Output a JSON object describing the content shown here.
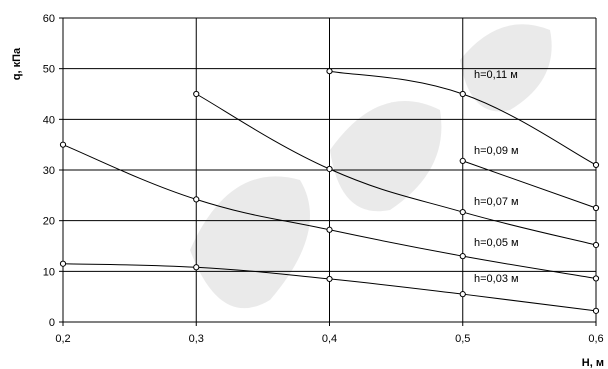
{
  "chart_data": {
    "type": "line",
    "xlabel": "H, м",
    "ylabel": "q, кПа",
    "xlim": [
      0.2,
      0.6
    ],
    "ylim": [
      0,
      60
    ],
    "xticks": [
      "0,2",
      "0,3",
      "0,4",
      "0,5",
      "0,6"
    ],
    "yticks": [
      "0",
      "10",
      "20",
      "30",
      "40",
      "50",
      "60"
    ],
    "grid": true,
    "series": [
      {
        "name": "h=0,11 м",
        "x": [
          0.4,
          0.5,
          0.6
        ],
        "y": [
          49.5,
          45,
          31
        ]
      },
      {
        "name": "h=0,09 м",
        "x": [
          0.3,
          0.4,
          0.5,
          0.6
        ],
        "y": [
          45,
          30.2,
          21.7,
          15.2
        ]
      },
      {
        "name": "h=0,07 м",
        "x": [
          0.2,
          0.3,
          0.4,
          0.5,
          0.6
        ],
        "y": [
          35,
          24.2,
          18.2,
          13,
          8.6
        ]
      },
      {
        "name": "h=0,05 м",
        "x": [
          0.2,
          0.3,
          0.4,
          0.5,
          0.6
        ],
        "y": [
          11.5,
          10.8,
          8.5,
          5.5,
          2.2
        ]
      },
      {
        "name": "h=0,03 м",
        "x": [],
        "y": []
      }
    ],
    "extra_series": [
      {
        "x": [
          0.5,
          0.6
        ],
        "y": [
          31.8,
          22.5
        ]
      }
    ]
  }
}
